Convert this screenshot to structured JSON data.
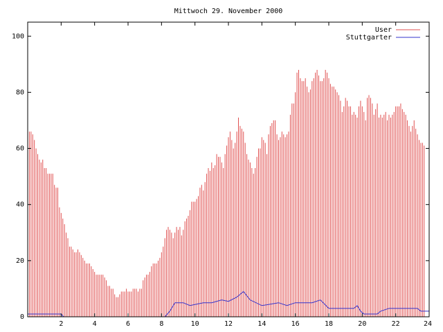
{
  "chart_data": {
    "type": "line",
    "title": "Mittwoch 29. November 2000",
    "xlabel": "",
    "ylabel": "",
    "xlim": [
      0,
      24
    ],
    "ylim": [
      0,
      105
    ],
    "x_ticks": [
      2,
      4,
      6,
      8,
      10,
      12,
      14,
      16,
      18,
      20,
      22,
      24
    ],
    "y_ticks": [
      0,
      20,
      40,
      60,
      80,
      100
    ],
    "legend_position": "top-right",
    "series": [
      {
        "name": "User",
        "style": "impulses",
        "color": "#e05050",
        "x_step_hours": 0.1,
        "values": [
          66,
          66,
          66,
          65,
          63,
          60,
          58,
          56,
          55,
          56,
          53,
          53,
          51,
          51,
          51,
          51,
          47,
          46,
          46,
          39,
          37,
          35,
          33,
          30,
          28,
          25,
          25,
          24,
          23,
          23,
          24,
          23,
          22,
          21,
          20,
          19,
          19,
          19,
          18,
          17,
          16,
          15,
          15,
          15,
          15,
          15,
          14,
          13,
          11,
          11,
          10,
          10,
          8,
          7,
          7,
          8,
          9,
          9,
          9,
          10,
          9,
          9,
          9,
          10,
          10,
          10,
          9,
          10,
          10,
          13,
          14,
          15,
          15,
          16,
          18,
          19,
          19,
          19,
          20,
          21,
          23,
          25,
          28,
          31,
          32,
          31,
          30,
          28,
          30,
          32,
          31,
          32,
          29,
          31,
          34,
          35,
          36,
          38,
          41,
          41,
          41,
          42,
          43,
          46,
          47,
          45,
          48,
          51,
          53,
          52,
          55,
          53,
          54,
          58,
          57,
          57,
          55,
          53,
          58,
          61,
          64,
          66,
          63,
          60,
          62,
          66,
          71,
          68,
          67,
          66,
          62,
          58,
          56,
          55,
          53,
          51,
          53,
          57,
          60,
          60,
          64,
          63,
          62,
          58,
          65,
          68,
          69,
          70,
          70,
          65,
          63,
          64,
          66,
          65,
          64,
          65,
          66,
          72,
          76,
          76,
          80,
          87,
          88,
          85,
          84,
          84,
          85,
          82,
          80,
          81,
          84,
          85,
          87,
          88,
          86,
          84,
          84,
          85,
          88,
          87,
          85,
          83,
          82,
          82,
          81,
          80,
          79,
          77,
          73,
          75,
          78,
          77,
          75,
          75,
          72,
          73,
          72,
          71,
          75,
          77,
          75,
          73,
          70,
          78,
          79,
          78,
          76,
          72,
          74,
          76,
          71,
          72,
          71,
          72,
          73,
          70,
          72,
          71,
          72,
          73,
          75,
          75,
          75,
          76,
          74,
          73,
          72,
          70,
          68,
          66,
          68,
          70,
          67,
          65,
          63,
          62,
          62,
          61
        ]
      },
      {
        "name": "Stuttgarter",
        "style": "line",
        "color": "#3333cc",
        "points": [
          [
            0,
            1
          ],
          [
            2,
            1
          ],
          [
            2.15,
            0
          ],
          [
            8.2,
            0
          ],
          [
            8.5,
            2
          ],
          [
            8.8,
            5
          ],
          [
            9.3,
            5
          ],
          [
            9.7,
            4
          ],
          [
            10.5,
            5
          ],
          [
            11,
            5
          ],
          [
            11.6,
            6
          ],
          [
            12,
            5.5
          ],
          [
            12.5,
            7
          ],
          [
            12.9,
            9
          ],
          [
            13.3,
            6
          ],
          [
            14,
            4
          ],
          [
            15,
            5
          ],
          [
            15.5,
            4
          ],
          [
            16,
            5
          ],
          [
            17,
            5
          ],
          [
            17.5,
            6
          ],
          [
            18,
            3
          ],
          [
            19.5,
            3
          ],
          [
            19.7,
            4
          ],
          [
            19.9,
            2
          ],
          [
            20.1,
            1
          ],
          [
            20.9,
            1
          ],
          [
            21.1,
            2
          ],
          [
            21.6,
            3
          ],
          [
            23.3,
            3
          ],
          [
            23.5,
            2
          ],
          [
            24,
            2
          ]
        ]
      }
    ]
  }
}
